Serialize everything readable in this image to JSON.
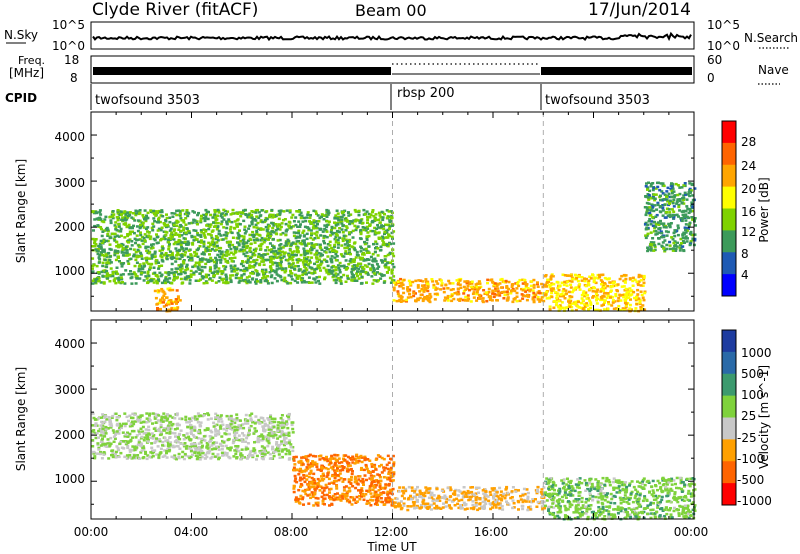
{
  "header": {
    "station": "Clyde River (fitACF)",
    "beam": "Beam 00",
    "date": "17/Jun/2014"
  },
  "nsky_panel": {
    "label": "N.Sky",
    "right_label": "N.Search",
    "ticks": [
      "10^5",
      "10^0"
    ],
    "right_ticks": [
      "10^5",
      "10^0"
    ]
  },
  "freq_panel": {
    "label_top": "Freq.",
    "label_bottom": "[MHz]",
    "ticks": [
      "18",
      "8"
    ],
    "right_label": "Nave",
    "right_ticks": [
      "60",
      "0"
    ]
  },
  "cpid_panel": {
    "label": "CPID",
    "modes": [
      {
        "name": "twofsound 3503",
        "start_hour": 0,
        "end_hour": 12
      },
      {
        "name": "rbsp 200",
        "start_hour": 12,
        "end_hour": 18
      },
      {
        "name": "twofsound 3503",
        "start_hour": 18,
        "end_hour": 24
      }
    ]
  },
  "x_axis": {
    "title": "Time UT",
    "ticks": [
      "00:00",
      "04:00",
      "08:00",
      "12:00",
      "16:00",
      "20:00",
      "00:00"
    ]
  },
  "power_panel": {
    "ylabel": "Slant Range [km]",
    "yticks": [
      "1000",
      "2000",
      "3000",
      "4000"
    ],
    "colorbar_title": "Power [dB]",
    "colorbar_labels": [
      "28",
      "24",
      "20",
      "16",
      "12",
      "8",
      "4"
    ],
    "colors": [
      "#ff0000",
      "#ff6400",
      "#ffa500",
      "#ffff00",
      "#7fd200",
      "#3c9a5a",
      "#1e5ab4",
      "#0000ff"
    ]
  },
  "velocity_panel": {
    "ylabel": "Slant Range [km]",
    "yticks": [
      "1000",
      "2000",
      "3000",
      "4000"
    ],
    "colorbar_title": "Velocity [m s^-1]",
    "colorbar_labels": [
      "1000",
      "500",
      "100",
      "25",
      "-25",
      "-100",
      "-500",
      "-1000"
    ],
    "colors": [
      "#1e3ca0",
      "#2a6aa8",
      "#3c9a6e",
      "#7fd23c",
      "#c8c8c8",
      "#ffa000",
      "#ff6400",
      "#ff0000"
    ]
  },
  "chart_data": {
    "type": "heatmap",
    "title": "Clyde River (fitACF)",
    "xlabel": "Time UT",
    "ylabel": "Slant Range [km]",
    "x_range_hours": [
      0,
      24
    ],
    "y_range_km": [
      180,
      4500
    ],
    "power_db": {
      "scale": [
        0,
        32
      ],
      "regions": [
        {
          "t0": 0.0,
          "t1": 12.0,
          "r0": 800,
          "r1": 2400,
          "value": 12
        },
        {
          "t0": 2.5,
          "t1": 3.5,
          "r0": 200,
          "r1": 700,
          "value": 22
        },
        {
          "t0": 12.0,
          "t1": 18.0,
          "r0": 400,
          "r1": 900,
          "value": 22
        },
        {
          "t0": 18.0,
          "t1": 22.0,
          "r0": 200,
          "r1": 1000,
          "value": 20
        },
        {
          "t0": 22.0,
          "t1": 24.0,
          "r0": 1500,
          "r1": 3000,
          "value": 10
        }
      ]
    },
    "velocity": {
      "scale": [
        -1000,
        1000
      ],
      "regions": [
        {
          "t0": 0.0,
          "t1": 8.0,
          "r0": 1500,
          "r1": 2500,
          "value": 0
        },
        {
          "t0": 8.0,
          "t1": 12.0,
          "r0": 500,
          "r1": 1600,
          "value": -500
        },
        {
          "t0": 12.0,
          "t1": 18.0,
          "r0": 400,
          "r1": 900,
          "value": -300
        },
        {
          "t0": 18.0,
          "t1": 24.0,
          "r0": 200,
          "r1": 1100,
          "value": 150
        }
      ]
    }
  }
}
